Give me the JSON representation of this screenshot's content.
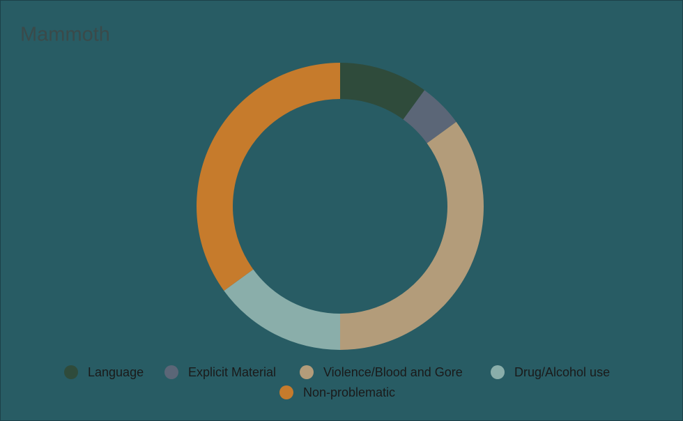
{
  "chart_data": {
    "type": "donut",
    "title": "Mammoth",
    "categories": [
      "Language",
      "Explicit Material",
      "Violence/Blood and Gore",
      "Drug/Alcohol use",
      "Non-problematic"
    ],
    "values": [
      10,
      5,
      35,
      15,
      35
    ],
    "colors": [
      "#2f4b3b",
      "#5b6677",
      "#b39c7a",
      "#8aaeaa",
      "#c67b2c"
    ],
    "legend": "bottom"
  }
}
